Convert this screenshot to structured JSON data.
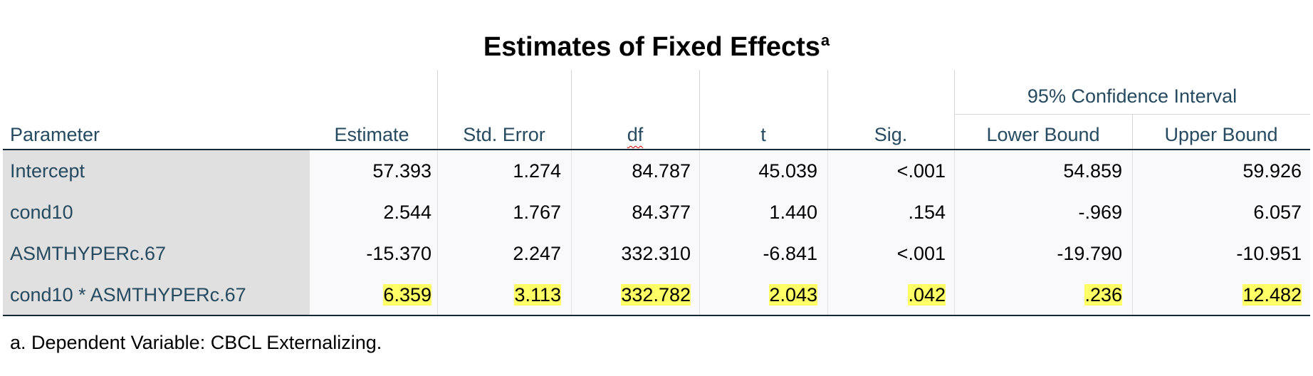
{
  "title": "Estimates of Fixed Effects",
  "title_footnote_marker": "a",
  "group_header": "95% Confidence Interval",
  "columns": [
    "Parameter",
    "Estimate",
    "Std. Error",
    "df",
    "t",
    "Sig.",
    "Lower Bound",
    "Upper Bound"
  ],
  "rows": [
    {
      "parameter": "Intercept",
      "values": [
        "57.393",
        "1.274",
        "84.787",
        "45.039",
        "<.001",
        "54.859",
        "59.926"
      ],
      "highlighted": false
    },
    {
      "parameter": "cond10",
      "values": [
        "2.544",
        "1.767",
        "84.377",
        "1.440",
        ".154",
        "-.969",
        "6.057"
      ],
      "highlighted": false
    },
    {
      "parameter": "ASMTHYPERc.67",
      "values": [
        "-15.370",
        "2.247",
        "332.310",
        "-6.841",
        "<.001",
        "-19.790",
        "-10.951"
      ],
      "highlighted": false
    },
    {
      "parameter": "cond10 * ASMTHYPERc.67",
      "values": [
        "6.359",
        "3.113",
        "332.782",
        "2.043",
        ".042",
        ".236",
        "12.482"
      ],
      "highlighted": true
    }
  ],
  "footnote": "a. Dependent Variable: CBCL Externalizing.",
  "colors": {
    "highlight": "#ffff66",
    "header_text": "#264a60",
    "label_bg": "#e0e0e0"
  }
}
